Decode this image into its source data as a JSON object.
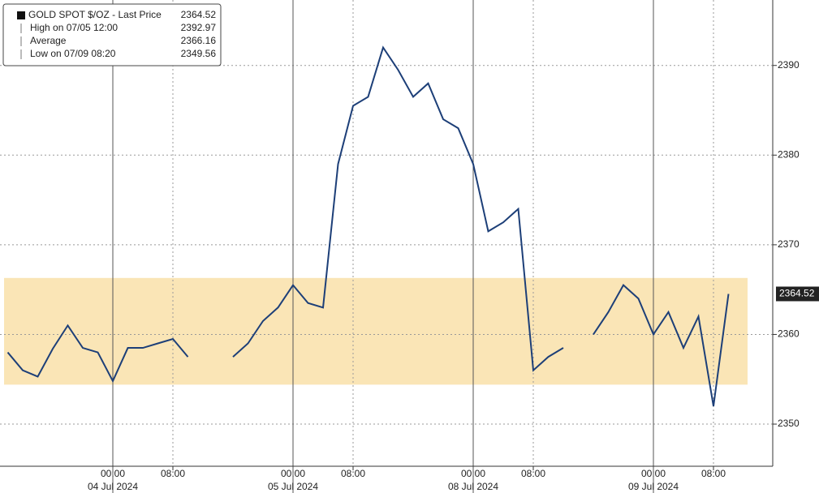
{
  "chart_data": {
    "type": "line",
    "legend": [
      {
        "label": "GOLD SPOT $/OZ - Last Price",
        "value": 2364.52
      },
      {
        "label": "High on 07/05 12:00",
        "value": 2392.97
      },
      {
        "label": "Average",
        "value": 2366.16
      },
      {
        "label": "Low on 07/09 08:20",
        "value": 2349.56
      }
    ],
    "x": [
      "07/03 10:00",
      "07/03 12:00",
      "07/03 14:00",
      "07/03 16:00",
      "07/03 18:00",
      "07/03 20:00",
      "07/03 22:00",
      "07/04 00:00",
      "07/04 02:00",
      "07/04 04:00",
      "07/04 06:00",
      "07/04 08:00",
      "07/04 10:00",
      "07/04 12:00",
      "07/04 14:00",
      "07/04 16:00",
      "07/04 18:00",
      "07/04 20:00",
      "07/04 22:00",
      "07/05 00:00",
      "07/05 02:00",
      "07/05 04:00",
      "07/05 06:00",
      "07/05 08:00",
      "07/05 10:00",
      "07/05 12:00",
      "07/05 14:00",
      "07/05 16:00",
      "07/05 18:00",
      "07/05 20:00",
      "07/05 22:00",
      "07/08 00:00",
      "07/08 02:00",
      "07/08 04:00",
      "07/08 06:00",
      "07/08 08:00",
      "07/08 10:00",
      "07/08 12:00",
      "07/08 14:00",
      "07/08 16:00",
      "07/08 18:00",
      "07/08 20:00",
      "07/08 22:00",
      "07/09 00:00",
      "07/09 02:00",
      "07/09 04:00",
      "07/09 06:00",
      "07/09 08:00",
      "07/09 10:00"
    ],
    "series": [
      {
        "name": "GOLD SPOT $/OZ",
        "color": "#1d3f78",
        "values": [
          2358,
          2356,
          2355.3,
          2358.4,
          2361,
          2358.5,
          2358,
          2354.8,
          2358.5,
          2358.5,
          2359,
          2359.5,
          2357.5,
          null,
          null,
          2357.5,
          2359,
          2361.5,
          2363,
          2365.5,
          2363.5,
          2363,
          2379,
          2385.5,
          2386.5,
          2392,
          2389.5,
          2386.5,
          2388,
          2384,
          2383,
          2379,
          2371.5,
          2372.5,
          2374,
          2356,
          2357.5,
          2358.5,
          null,
          2360,
          2362.5,
          2365.5,
          2364,
          2360,
          2362.5,
          2358.5,
          2362,
          2352,
          2364.52
        ]
      }
    ],
    "band": [
      2354.4,
      2366.3
    ],
    "band_color": "#fae5b6",
    "ylim": [
      2345.3,
      2397.3
    ],
    "yticks": [
      2350,
      2360,
      2370,
      2380,
      2390
    ],
    "xticks": [
      {
        "value": 7,
        "label": "00:00"
      },
      {
        "value": 11,
        "label": "08:00"
      },
      {
        "value": 19,
        "label": "00:00"
      },
      {
        "value": 23,
        "label": "08:00"
      },
      {
        "value": 31,
        "label": "00:00"
      },
      {
        "value": 35,
        "label": "08:00"
      },
      {
        "value": 43,
        "label": "00:00"
      },
      {
        "value": 47,
        "label": "08:00"
      }
    ],
    "xdates": [
      {
        "value": 7,
        "label": "04 Jul 2024"
      },
      {
        "value": 19,
        "label": "05 Jul 2024"
      },
      {
        "value": 31,
        "label": "08 Jul 2024"
      },
      {
        "value": 43,
        "label": "09 Jul 2024"
      }
    ],
    "grid": true
  }
}
